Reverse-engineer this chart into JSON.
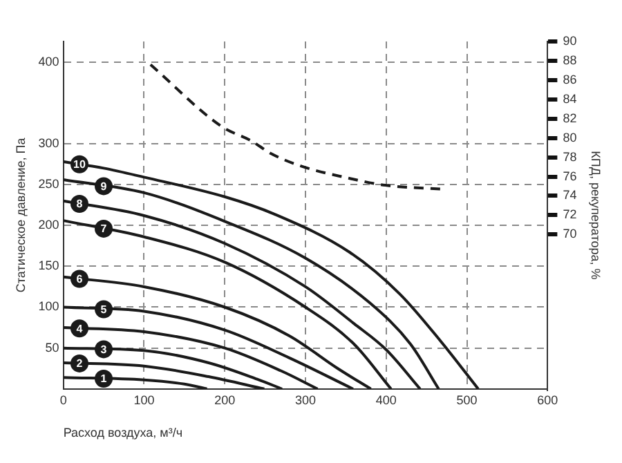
{
  "chart_data": {
    "type": "line",
    "xlabel": "Расход воздуха, м³/ч",
    "ylabel": "Статическое давление, Па",
    "y2label": "КПД, рекуператора, %",
    "xlim": [
      0,
      600
    ],
    "xticks": [
      0,
      100,
      200,
      300,
      400,
      500,
      600
    ],
    "ylim": [
      0,
      425
    ],
    "yticks": [
      50,
      100,
      150,
      200,
      250,
      300,
      400
    ],
    "y2lim": [
      54,
      90
    ],
    "y2ticks": [
      70,
      72,
      74,
      76,
      78,
      80,
      82,
      84,
      86,
      88,
      90
    ],
    "grid": true,
    "legend": false,
    "marker": "none",
    "line_style": "solid",
    "series": [
      {
        "name": "10",
        "color": "#1a1a1a",
        "x": [
          0,
          50,
          100,
          200,
          261,
          355,
          417,
          467,
          514
        ],
        "values": [
          278,
          270,
          259,
          235,
          214,
          167,
          116,
          59,
          0
        ]
      },
      {
        "name": "9",
        "color": "#1a1a1a",
        "x": [
          0,
          100,
          200,
          300,
          380,
          430,
          465
        ],
        "values": [
          256,
          240,
          205,
          160,
          105,
          55,
          0
        ]
      },
      {
        "name": "8",
        "color": "#1a1a1a",
        "x": [
          0,
          100,
          200,
          300,
          360,
          400,
          442
        ],
        "values": [
          230,
          212,
          178,
          125,
          80,
          48,
          0
        ]
      },
      {
        "name": "7",
        "color": "#1a1a1a",
        "x": [
          0,
          100,
          200,
          300,
          360,
          406
        ],
        "values": [
          206,
          186,
          155,
          100,
          55,
          0
        ]
      },
      {
        "name": "6",
        "color": "#1a1a1a",
        "x": [
          0,
          100,
          200,
          280,
          340,
          381
        ],
        "values": [
          137,
          125,
          100,
          65,
          25,
          0
        ]
      },
      {
        "name": "5",
        "color": "#1a1a1a",
        "x": [
          0,
          100,
          200,
          280,
          359
        ],
        "values": [
          100,
          95,
          72,
          38,
          0
        ]
      },
      {
        "name": "4",
        "color": "#1a1a1a",
        "x": [
          0,
          100,
          200,
          270,
          315
        ],
        "values": [
          75,
          70,
          50,
          22,
          0
        ]
      },
      {
        "name": "3",
        "color": "#1a1a1a",
        "x": [
          0,
          100,
          180,
          240,
          271
        ],
        "values": [
          50,
          47,
          32,
          12,
          0
        ]
      },
      {
        "name": "2",
        "color": "#1a1a1a",
        "x": [
          0,
          100,
          180,
          249
        ],
        "values": [
          32,
          28,
          15,
          0
        ]
      },
      {
        "name": "1",
        "color": "#1a1a1a",
        "x": [
          0,
          100,
          150,
          178
        ],
        "values": [
          14,
          11,
          6,
          0
        ]
      },
      {
        "color": "#1a1a1a",
        "axis": "y2",
        "line_style": "dashed",
        "x": [
          108,
          196,
          233,
          257,
          294,
          350,
          399,
          470
        ],
        "values": [
          87.6,
          81.2,
          79.7,
          78.4,
          77.1,
          75.9,
          75.1,
          74.7
        ]
      }
    ]
  }
}
